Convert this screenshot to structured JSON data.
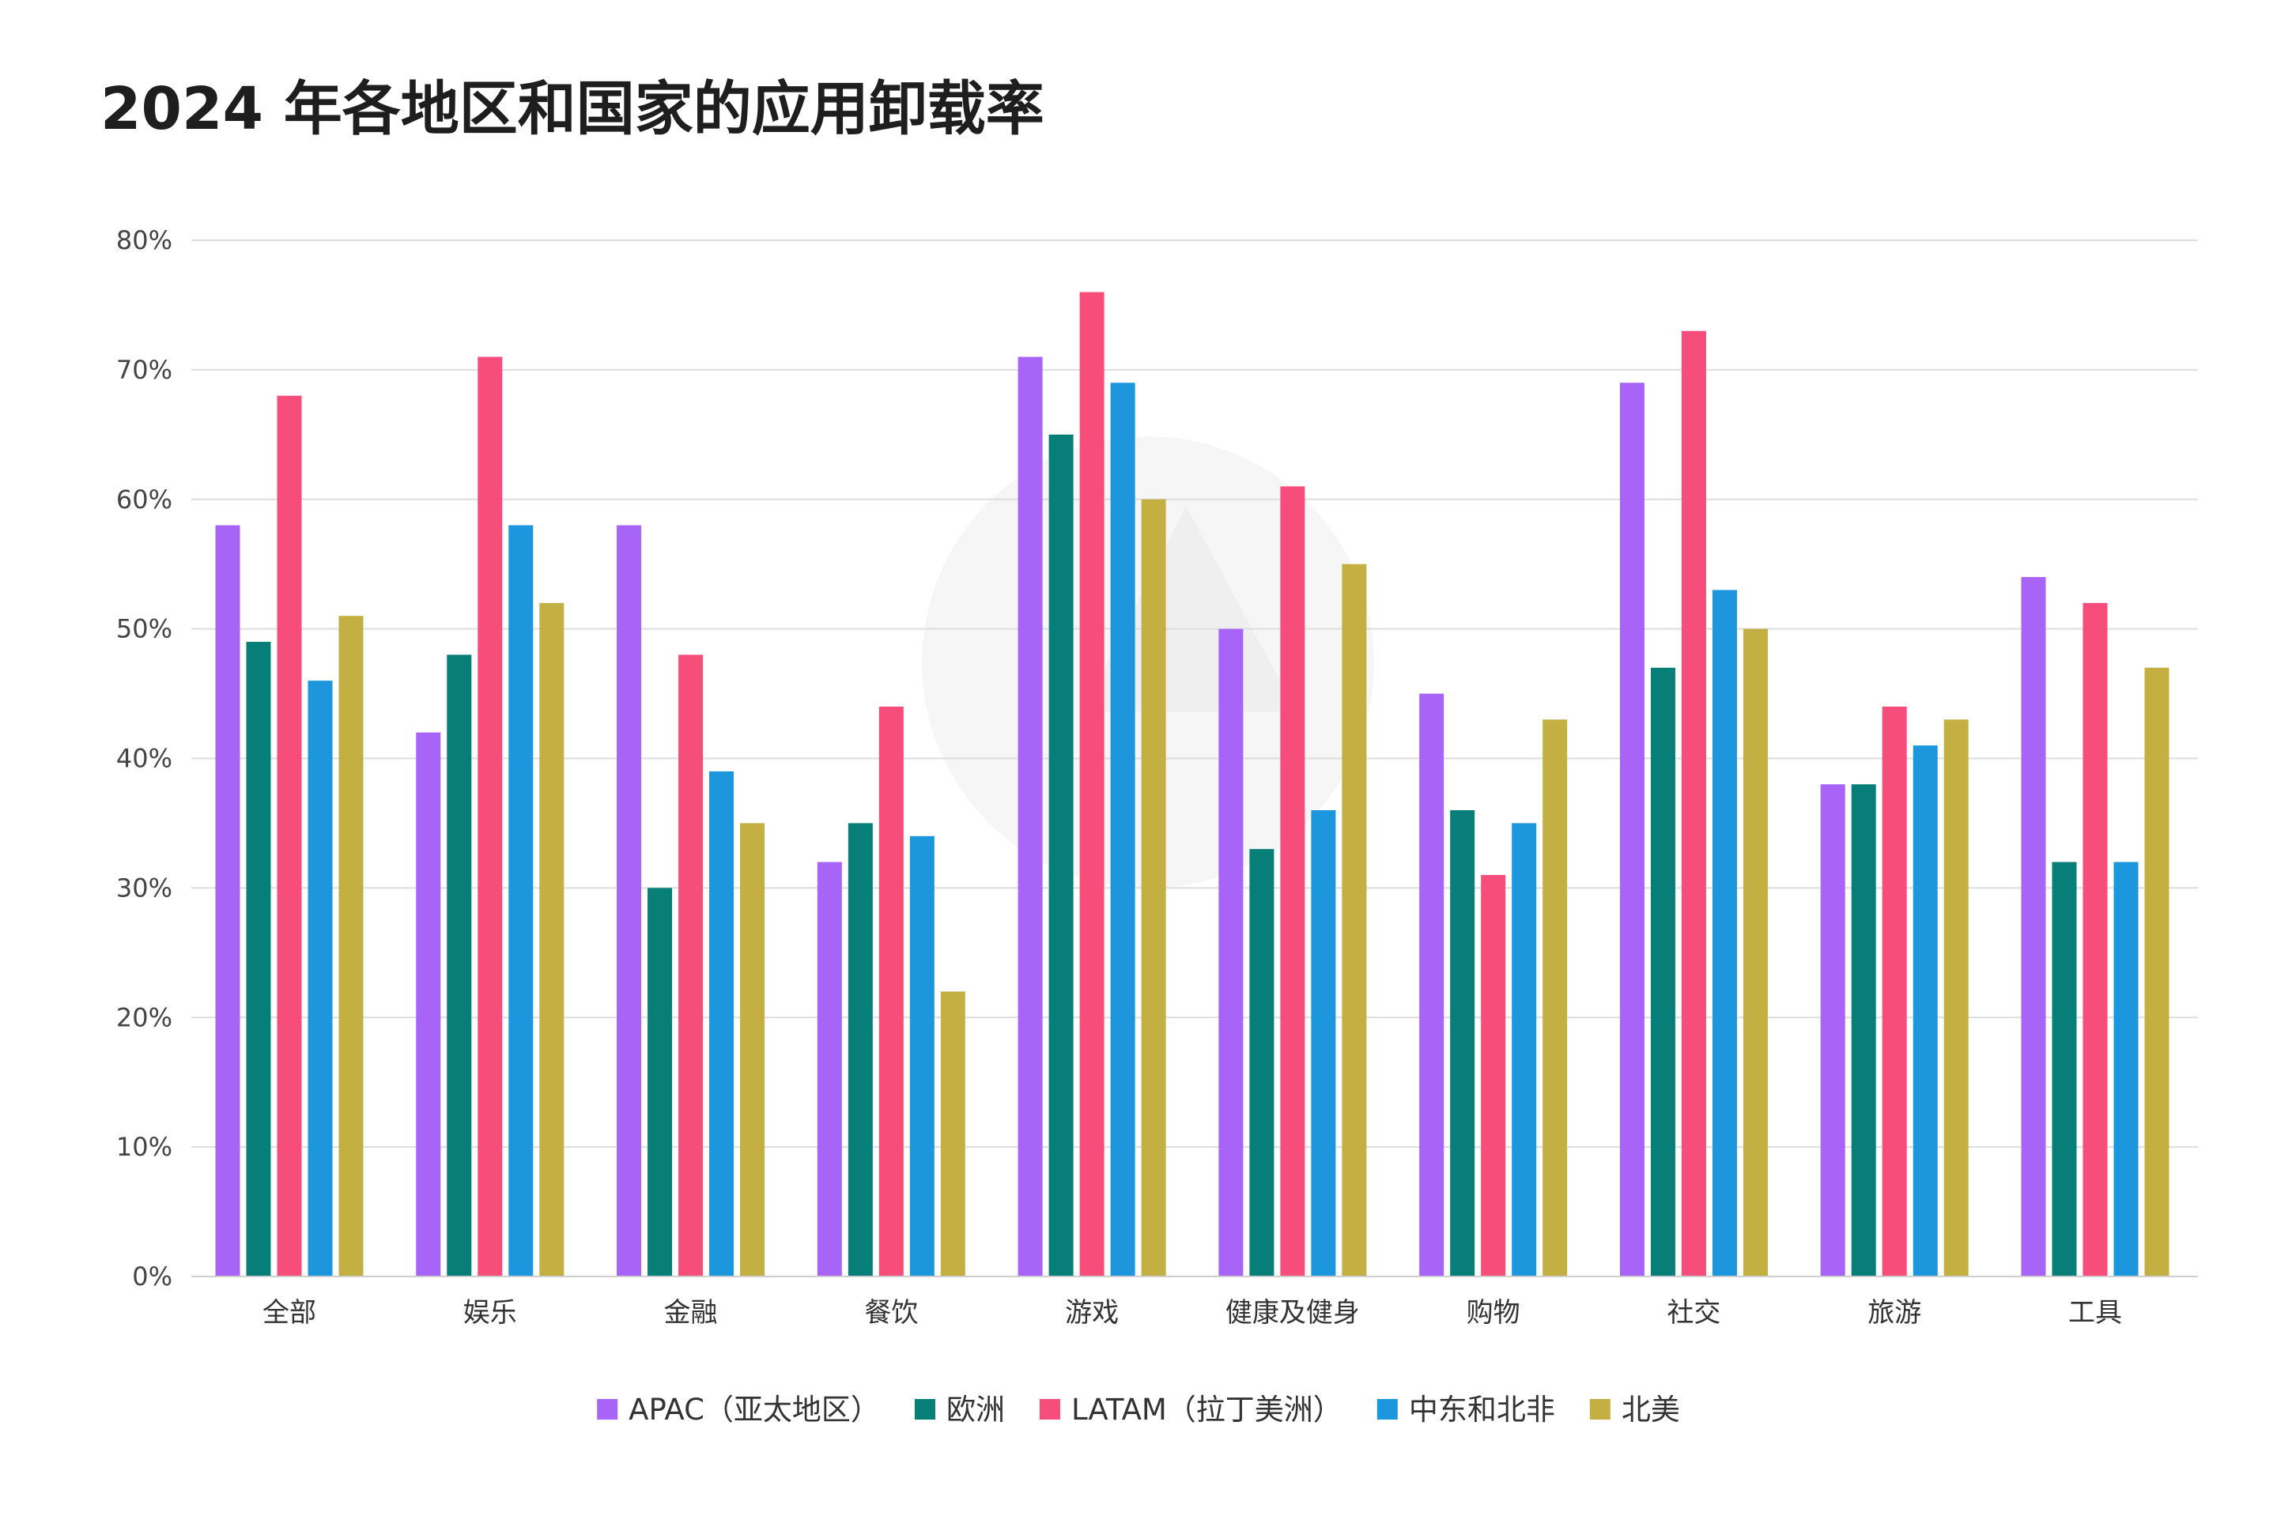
{
  "chart_data": {
    "type": "bar",
    "title": "2024 年各地区和国家的应用卸载率",
    "xlabel": "",
    "ylabel": "",
    "ylim": [
      0,
      80
    ],
    "y_ticks": [
      "0%",
      "10%",
      "20%",
      "30%",
      "40%",
      "50%",
      "60%",
      "70%",
      "80%"
    ],
    "grid": true,
    "legend_position": "bottom",
    "categories": [
      "全部",
      "娱乐",
      "金融",
      "餐饮",
      "游戏",
      "健康及健身",
      "购物",
      "社交",
      "旅游",
      "工具"
    ],
    "series": [
      {
        "name": "APAC（亚太地区）",
        "color": "#a764f6",
        "values": [
          58,
          42,
          58,
          32,
          71,
          50,
          45,
          69,
          38,
          54
        ]
      },
      {
        "name": "欧洲",
        "color": "#077e77",
        "values": [
          49,
          48,
          30,
          35,
          65,
          33,
          36,
          47,
          38,
          32
        ]
      },
      {
        "name": "LATAM（拉丁美洲）",
        "color": "#f64d7b",
        "values": [
          68,
          71,
          48,
          44,
          76,
          61,
          31,
          73,
          44,
          52
        ]
      },
      {
        "name": "中东和北非",
        "color": "#1c96dc",
        "values": [
          46,
          58,
          39,
          34,
          69,
          36,
          35,
          53,
          41,
          32
        ]
      },
      {
        "name": "北美",
        "color": "#c4b042",
        "values": [
          51,
          52,
          35,
          22,
          60,
          55,
          43,
          50,
          43,
          47
        ]
      }
    ]
  }
}
